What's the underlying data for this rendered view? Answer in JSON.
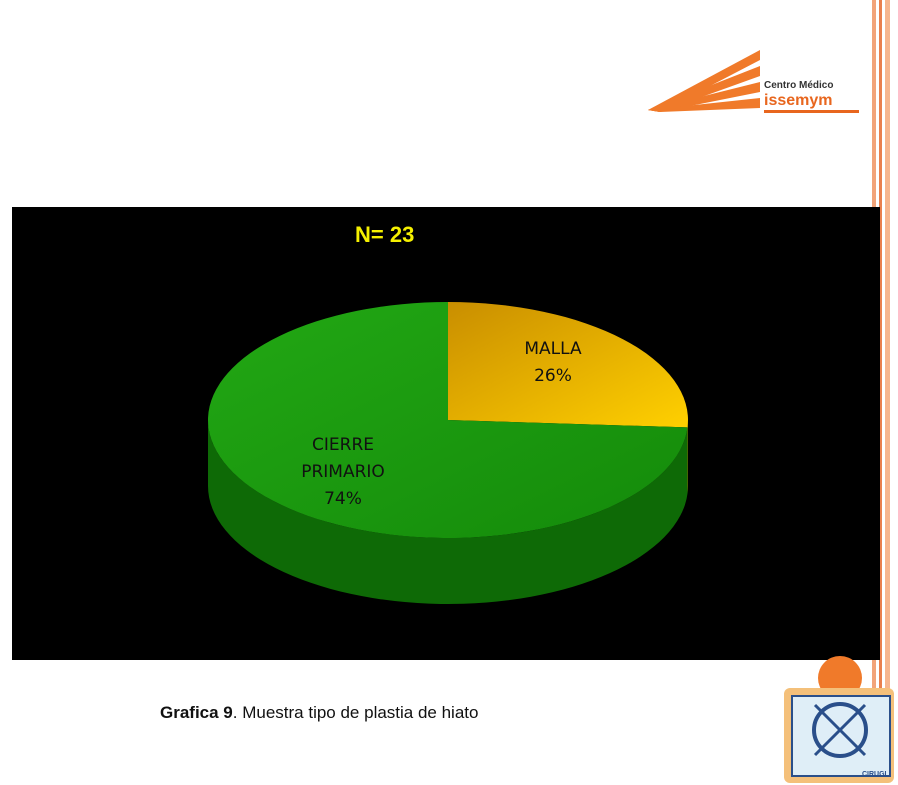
{
  "chart_data": {
    "type": "pie",
    "title": "N= 23",
    "categories": [
      "MALLA",
      "CIERRE PRIMARIO"
    ],
    "values": [
      26,
      74
    ],
    "value_labels": [
      "26%",
      "74%"
    ],
    "colors": [
      "#e8b400",
      "#1f9a12"
    ]
  },
  "caption": {
    "label": "Grafica 9",
    "text": ". Muestra tipo de plastia de hiato"
  },
  "logo": {
    "line1": "Centro Médico",
    "line2": "issemym"
  },
  "badge": "CIRUGI"
}
